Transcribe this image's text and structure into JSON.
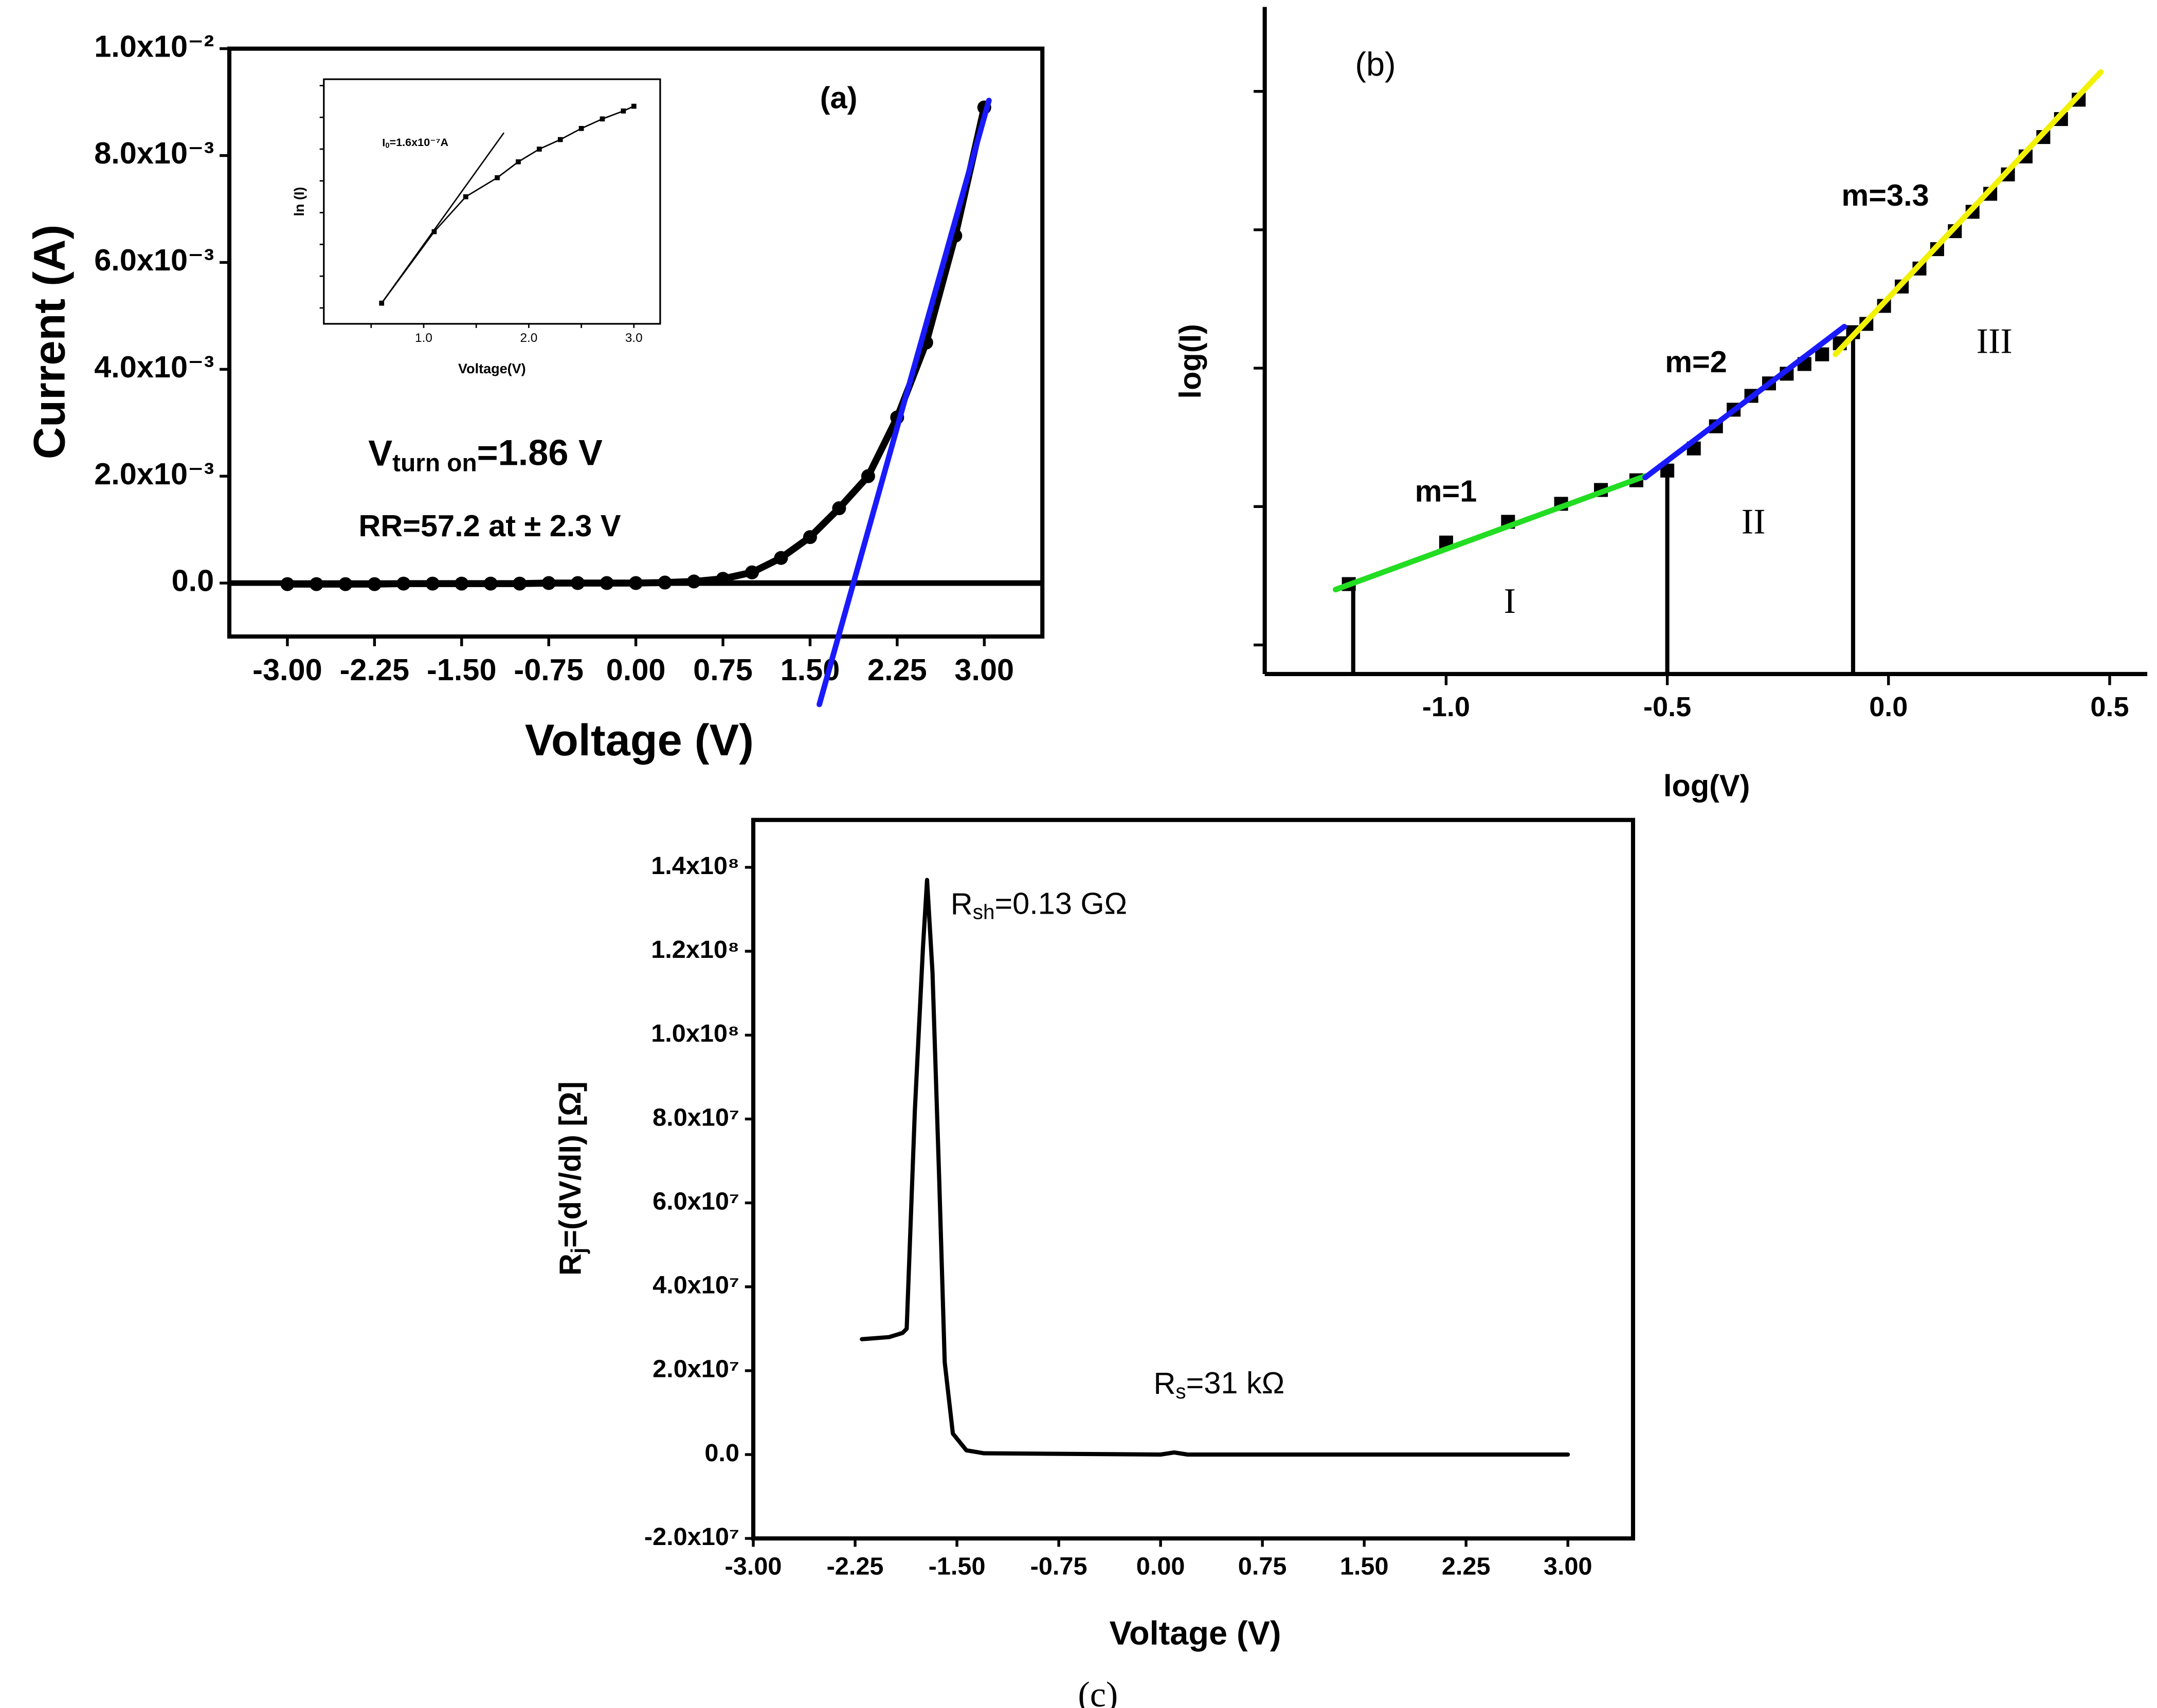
{
  "chart_data": [
    {
      "type": "line",
      "title": "(a)",
      "xlabel": "Voltage (V)",
      "ylabel": "Current (A)",
      "xlim": [
        -3.5,
        3.5
      ],
      "ylim": [
        -0.001,
        0.01
      ],
      "xticks": [
        {
          "value": -3,
          "label": "-3.00"
        },
        {
          "value": -2.25,
          "label": "-2.25"
        },
        {
          "value": -1.5,
          "label": "-1.50"
        },
        {
          "value": -0.75,
          "label": "-0.75"
        },
        {
          "value": 0,
          "label": "0.00"
        },
        {
          "value": 0.75,
          "label": "0.75"
        },
        {
          "value": 1.5,
          "label": "1.50"
        },
        {
          "value": 2.25,
          "label": "2.25"
        },
        {
          "value": 3,
          "label": "3.00"
        }
      ],
      "yticks": [
        {
          "value": 0,
          "label": "0.0"
        },
        {
          "value": 0.002,
          "label": "2.0x10⁻³"
        },
        {
          "value": 0.004,
          "label": "4.0x10⁻³"
        },
        {
          "value": 0.006,
          "label": "6.0x10⁻³"
        },
        {
          "value": 0.008,
          "label": "8.0x10⁻³"
        },
        {
          "value": 0.01,
          "label": "1.0x10⁻²"
        }
      ],
      "frame": "box",
      "zero_line": true,
      "series": [
        {
          "color": "#000000",
          "marker": "circle",
          "x": [
            -3,
            -2.75,
            -2.5,
            -2.25,
            -2,
            -1.75,
            -1.5,
            -1.25,
            -1,
            -0.75,
            -0.5,
            -0.25,
            0,
            0.25,
            0.5,
            0.75,
            1,
            1.25,
            1.5,
            1.75,
            2,
            2.25,
            2.5,
            2.75,
            3
          ],
          "values": [
            -2e-05,
            -2e-05,
            -2e-05,
            -2e-05,
            -1e-05,
            -1e-05,
            -1e-05,
            -1e-05,
            -1e-05,
            0,
            0,
            0,
            0,
            1e-05,
            3e-05,
            8e-05,
            0.0002,
            0.00047,
            0.00086,
            0.0014,
            0.002,
            0.0031,
            0.0045,
            0.0065,
            0.0089
          ]
        },
        {
          "color": "#1a1aff",
          "marker": "none",
          "x": [
            1.58,
            3.04
          ],
          "values": [
            -0.00227,
            0.00903
          ]
        }
      ],
      "annotations": [
        {
          "text": "V",
          "sub": "turn on",
          "after": "=1.86 V"
        },
        {
          "text": "RR=57.2 at ± 2.3 V"
        }
      ]
    },
    {
      "type": "line",
      "xlabel": "Voltage(V)",
      "ylabel": "ln (I)",
      "xlim": [
        0.05,
        3.25
      ],
      "ylim": [
        -11.5,
        -3.8
      ],
      "xticks": [
        0.5,
        {
          "value": 1,
          "label": "1.0"
        },
        1.5,
        {
          "value": 2,
          "label": "2.0"
        },
        2.5,
        {
          "value": 3,
          "label": "3.0"
        }
      ],
      "yticks": [
        -4,
        -5,
        -6,
        -7,
        -8,
        -9,
        -10,
        -11
      ],
      "frame": "box",
      "series": [
        {
          "color": "#000000",
          "marker": "square",
          "x": [
            0.6,
            1.1,
            1.4,
            1.7,
            1.9,
            2.1,
            2.3,
            2.5,
            2.7,
            2.9,
            3.0
          ],
          "values": [
            -10.85,
            -8.6,
            -7.5,
            -6.9,
            -6.4,
            -6.0,
            -5.7,
            -5.35,
            -5.05,
            -4.8,
            -4.65
          ]
        },
        {
          "color": "#000000",
          "marker": "none",
          "x": [
            0.6,
            1.76
          ],
          "values": [
            -10.85,
            -5.5
          ]
        }
      ],
      "annotations": [
        {
          "text": "I",
          "sub": "0",
          "after": "=1.6x10⁻⁷A"
        }
      ]
    },
    {
      "type": "scatter",
      "title": "(b)",
      "xlabel": "log(V)",
      "ylabel": "log(I)",
      "xlim": [
        -1.41,
        0.585
      ],
      "ylim": [
        -6.21,
        -1.39
      ],
      "xticks": [
        {
          "value": -1,
          "label": "-1.0"
        },
        {
          "value": -0.5,
          "label": "-0.5"
        },
        {
          "value": 0,
          "label": "0.0"
        },
        {
          "value": 0.5,
          "label": "0.5"
        }
      ],
      "yticks": [
        -2,
        -3,
        -4,
        -5,
        -6
      ],
      "frame": "axes",
      "series": [
        {
          "color": "#000000",
          "marker": "square",
          "x": [
            -1.22,
            -1.0,
            -0.86,
            -0.74,
            -0.65,
            -0.57,
            -0.5,
            -0.44,
            -0.39,
            -0.35,
            -0.31,
            -0.27,
            -0.23,
            -0.19,
            -0.15,
            -0.11,
            -0.08,
            -0.05,
            -0.01,
            0.03,
            0.07,
            0.11,
            0.15,
            0.19,
            0.23,
            0.27,
            0.31,
            0.35,
            0.39,
            0.43
          ],
          "values": [
            -5.56,
            -5.26,
            -5.11,
            -4.98,
            -4.88,
            -4.81,
            -4.74,
            -4.58,
            -4.42,
            -4.3,
            -4.2,
            -4.11,
            -4.04,
            -3.97,
            -3.9,
            -3.82,
            -3.74,
            -3.68,
            -3.55,
            -3.41,
            -3.28,
            -3.14,
            -3.01,
            -2.87,
            -2.74,
            -2.6,
            -2.47,
            -2.33,
            -2.2,
            -2.06
          ]
        },
        {
          "color": "#22dd22",
          "marker": "none",
          "x": [
            -1.25,
            -0.55
          ],
          "values": [
            -5.6,
            -4.78
          ]
        },
        {
          "color": "#1a1aff",
          "marker": "none",
          "x": [
            -0.55,
            -0.1
          ],
          "values": [
            -4.79,
            -3.7
          ]
        },
        {
          "color": "#f2f200",
          "marker": "none",
          "x": [
            -0.12,
            0.48
          ],
          "values": [
            -3.9,
            -1.86
          ]
        }
      ],
      "drops": {
        "x": [
          -1.21,
          -0.5,
          -0.08
        ],
        "values": [
          -5.56,
          -4.74,
          -3.74
        ]
      },
      "annotations": [
        {
          "text": "m=1"
        },
        {
          "text": "m=2"
        },
        {
          "text": "m=3.3"
        },
        {
          "text": "I"
        },
        {
          "text": "II"
        },
        {
          "text": "III"
        }
      ]
    },
    {
      "type": "line",
      "title": "(c)",
      "xlabel": "Voltage (V)",
      "ylabel": {
        "text": "R",
        "sub": "j",
        "after": "=(dV/dI) [Ω]"
      },
      "xlim": [
        -3,
        3.48
      ],
      "ylim": [
        -20000000,
        151300000
      ],
      "xticks": [
        {
          "value": -3,
          "label": "-3.00"
        },
        {
          "value": -2.25,
          "label": "-2.25"
        },
        {
          "value": -1.5,
          "label": "-1.50"
        },
        {
          "value": -0.75,
          "label": "-0.75"
        },
        {
          "value": 0,
          "label": "0.00"
        },
        {
          "value": 0.75,
          "label": "0.75"
        },
        {
          "value": 1.5,
          "label": "1.50"
        },
        {
          "value": 2.25,
          "label": "2.25"
        },
        {
          "value": 3,
          "label": "3.00"
        }
      ],
      "yticks": [
        {
          "value": -20000000,
          "label": "-2.0x10⁷"
        },
        {
          "value": 0,
          "label": "0.0"
        },
        {
          "value": 20000000,
          "label": "2.0x10⁷"
        },
        {
          "value": 40000000,
          "label": "4.0x10⁷"
        },
        {
          "value": 60000000,
          "label": "6.0x10⁷"
        },
        {
          "value": 80000000,
          "label": "8.0x10⁷"
        },
        {
          "value": 100000000,
          "label": "1.0x10⁸"
        },
        {
          "value": 120000000,
          "label": "1.2x10⁸"
        },
        {
          "value": 140000000,
          "label": "1.4x10⁸"
        }
      ],
      "frame": "box",
      "series": [
        {
          "color": "#000000",
          "marker": "none",
          "x": [
            -2.2,
            -2.0,
            -1.9,
            -1.87,
            -1.81,
            -1.75,
            -1.72,
            -1.68,
            -1.63,
            -1.59,
            -1.53,
            -1.43,
            -1.3,
            0,
            0.1,
            0.2,
            3.0
          ],
          "values": [
            27500000,
            28000000,
            29000000,
            30000000,
            82000000,
            121000000,
            137000000,
            115000000,
            65000000,
            22000000,
            5000000,
            1000000,
            300000,
            0,
            500000,
            0,
            0
          ]
        }
      ],
      "annotations": [
        {
          "text": "R",
          "sub": "sh",
          "after": "=0.13 GΩ"
        },
        {
          "text": "R",
          "sub": "s",
          "after": "=31 kΩ"
        }
      ]
    }
  ]
}
